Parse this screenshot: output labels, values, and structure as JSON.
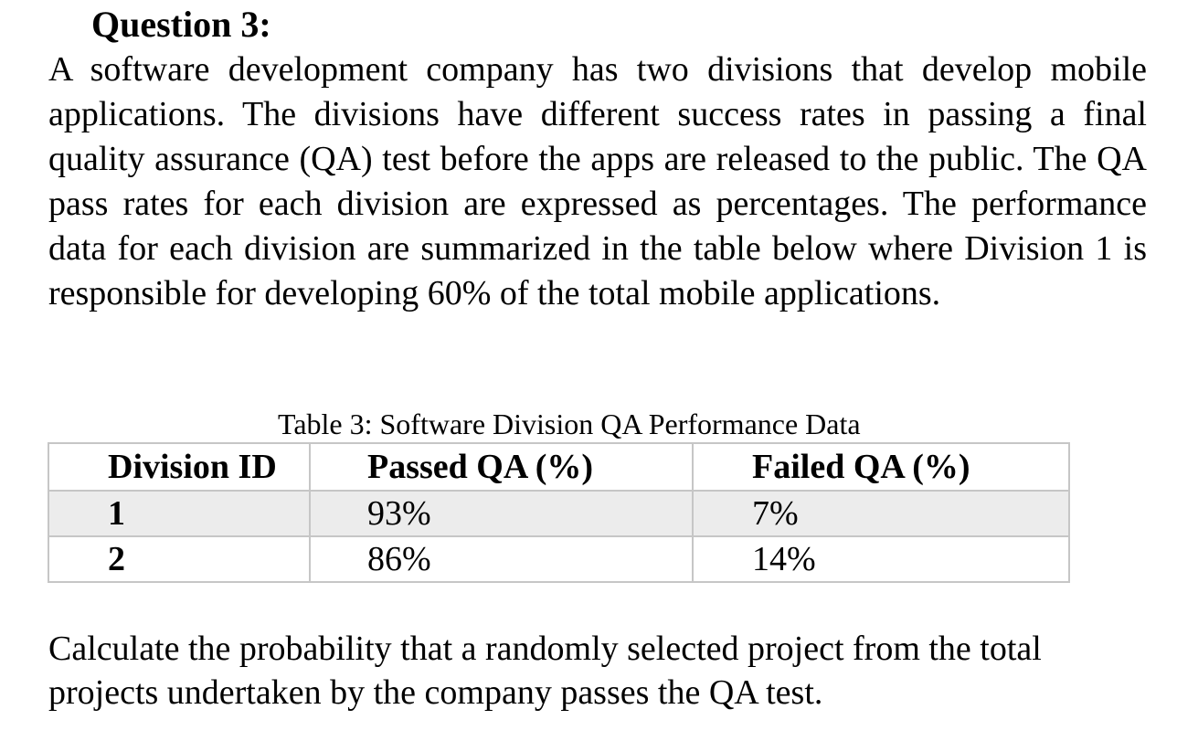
{
  "question": {
    "heading": "Question 3:",
    "intro": "A software development company has two divisions that develop mobile applications. The divisions have different success rates in passing a final quality assurance (QA) test before the apps are released to the public. The QA pass rates for each division are expressed as percentages. The performance data for each division are summarized in the table below where Division 1 is responsible for developing 60% of the total mobile applications.",
    "prompt": "Calculate the probability that a randomly selected project from the total projects undertaken by the company passes the QA test."
  },
  "table": {
    "caption": "Table 3: Software Division QA Performance Data",
    "headers": [
      "Division ID",
      "Passed QA (%)",
      "Failed QA (%)"
    ],
    "rows": [
      [
        "1",
        "93%",
        "7%"
      ],
      [
        "2",
        "86%",
        "14%"
      ]
    ]
  }
}
